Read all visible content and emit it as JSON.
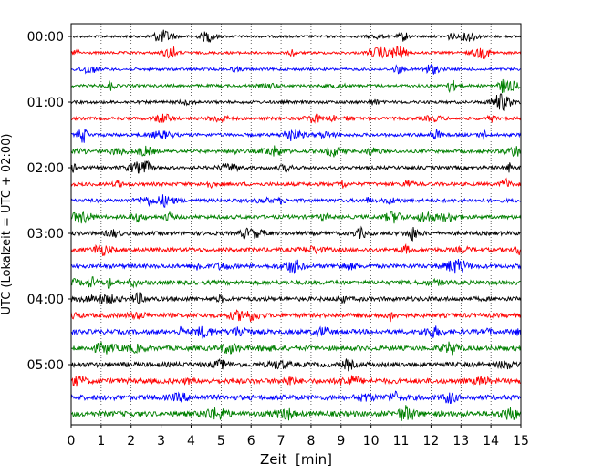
{
  "chart_data": {
    "type": "line",
    "title": "",
    "xlabel": "Zeit  [min]",
    "ylabel": "UTC (Lokalzeit = UTC + 02:00)",
    "xlim": [
      0,
      15
    ],
    "x_ticks": [
      0,
      1,
      2,
      3,
      4,
      5,
      6,
      7,
      8,
      9,
      10,
      11,
      12,
      13,
      14,
      15
    ],
    "y_ticks": [
      "00:00",
      "01:00",
      "02:00",
      "03:00",
      "04:00",
      "05:00"
    ],
    "grid": "vertical dotted lines at each minute",
    "trace_interval_minutes": 15,
    "trace_count": 24,
    "trace_colors": [
      "#000000",
      "#ff0000",
      "#0000ff",
      "#008000"
    ],
    "traces": [
      {
        "start": "00:00",
        "color": "#000000"
      },
      {
        "start": "00:15",
        "color": "#ff0000"
      },
      {
        "start": "00:30",
        "color": "#0000ff"
      },
      {
        "start": "00:45",
        "color": "#008000"
      },
      {
        "start": "01:00",
        "color": "#000000"
      },
      {
        "start": "01:15",
        "color": "#ff0000"
      },
      {
        "start": "01:30",
        "color": "#0000ff"
      },
      {
        "start": "01:45",
        "color": "#008000"
      },
      {
        "start": "02:00",
        "color": "#000000"
      },
      {
        "start": "02:15",
        "color": "#ff0000"
      },
      {
        "start": "02:30",
        "color": "#0000ff"
      },
      {
        "start": "02:45",
        "color": "#008000"
      },
      {
        "start": "03:00",
        "color": "#000000"
      },
      {
        "start": "03:15",
        "color": "#ff0000"
      },
      {
        "start": "03:30",
        "color": "#0000ff"
      },
      {
        "start": "03:45",
        "color": "#008000"
      },
      {
        "start": "04:00",
        "color": "#000000"
      },
      {
        "start": "04:15",
        "color": "#ff0000"
      },
      {
        "start": "04:30",
        "color": "#0000ff"
      },
      {
        "start": "04:45",
        "color": "#008000"
      },
      {
        "start": "05:00",
        "color": "#000000"
      },
      {
        "start": "05:15",
        "color": "#ff0000"
      },
      {
        "start": "05:30",
        "color": "#0000ff"
      },
      {
        "start": "05:45",
        "color": "#008000"
      }
    ]
  }
}
